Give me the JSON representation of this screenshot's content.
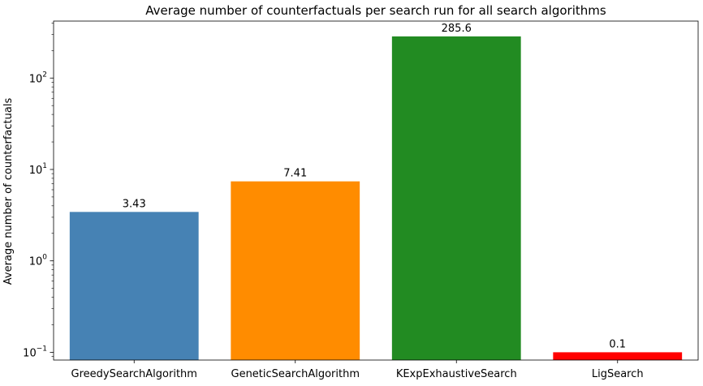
{
  "chart_data": {
    "type": "bar",
    "title": "Average number of counterfactuals per search run for all search algorithms",
    "xlabel": "",
    "ylabel": "Average number of counterfactuals",
    "y_scale": "log",
    "ylim": [
      0.0822,
      420
    ],
    "grid": false,
    "legend": "none",
    "categories": [
      "GreedySearchAlgorithm",
      "GeneticSearchAlgorithm",
      "KExpExhaustiveSearch",
      "LigSearch"
    ],
    "values": [
      3.43,
      7.41,
      285.6,
      0.1
    ],
    "data_labels": [
      "3.43",
      "7.41",
      "285.6",
      "0.1"
    ],
    "colors": [
      "#4682b4",
      "#ff8c00",
      "#228b22",
      "#ff0000"
    ],
    "y_ticks": [
      {
        "value": 0.1,
        "base": "10",
        "exp": "−1"
      },
      {
        "value": 1,
        "base": "10",
        "exp": "0"
      },
      {
        "value": 10,
        "base": "10",
        "exp": "1"
      },
      {
        "value": 100,
        "base": "10",
        "exp": "2"
      }
    ]
  }
}
